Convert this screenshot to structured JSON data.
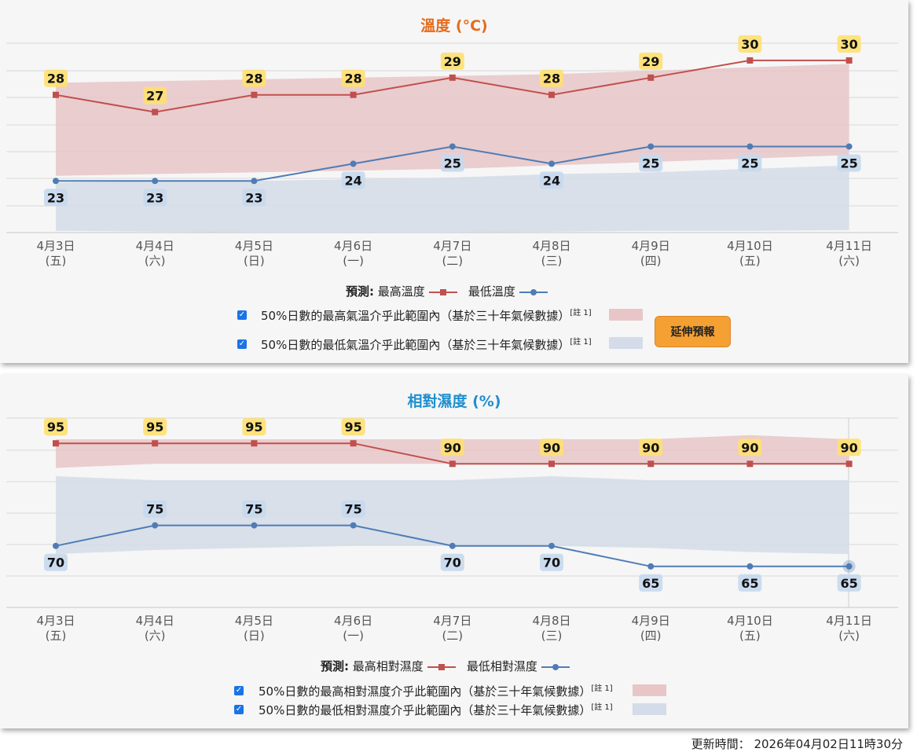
{
  "chart_data": [
    {
      "type": "line",
      "title": "溫度 (°C)",
      "categories": [
        "4月3日",
        "4月4日",
        "4月5日",
        "4月6日",
        "4月7日",
        "4月8日",
        "4月9日",
        "4月10日",
        "4月11日"
      ],
      "weekdays": [
        "(五)",
        "(六)",
        "(日)",
        "(一)",
        "(二)",
        "(三)",
        "(四)",
        "(五)",
        "(六)"
      ],
      "series": [
        {
          "name": "最高溫度",
          "values": [
            28,
            27,
            28,
            28,
            29,
            28,
            29,
            30,
            30
          ],
          "color": "#c0504d"
        },
        {
          "name": "最低溫度",
          "values": [
            23,
            23,
            23,
            24,
            25,
            24,
            25,
            25,
            25
          ],
          "color": "#4f7cb6"
        }
      ],
      "bands": [
        {
          "name": "50%日數的最高氣溫介乎此範圍內（基於三十年氣候數據）",
          "low": [
            23.3,
            23.4,
            23.5,
            23.6,
            23.7,
            23.9,
            24.1,
            24.3,
            24.5
          ],
          "high": [
            28.7,
            28.8,
            28.9,
            29.0,
            29.1,
            29.2,
            29.4,
            29.6,
            29.8
          ],
          "color": "#e8c6c8"
        },
        {
          "name": "50%日數的最低氣溫介乎此範圍內（基於三十年氣候數據）",
          "low": [
            20.1,
            20.05,
            20.0,
            20.0,
            20.0,
            20.05,
            20.1,
            20.1,
            20.15
          ],
          "high": [
            22.9,
            23.0,
            23.0,
            23.1,
            23.2,
            23.4,
            23.5,
            23.7,
            23.9
          ],
          "color": "#d3dce8"
        }
      ],
      "ylim": [
        20,
        31
      ]
    },
    {
      "type": "line",
      "title": "相對濕度 (%)",
      "categories": [
        "4月3日",
        "4月4日",
        "4月5日",
        "4月6日",
        "4月7日",
        "4月8日",
        "4月9日",
        "4月10日",
        "4月11日"
      ],
      "weekdays": [
        "(五)",
        "(六)",
        "(日)",
        "(一)",
        "(二)",
        "(三)",
        "(四)",
        "(五)",
        "(六)"
      ],
      "series": [
        {
          "name": "最高相對濕度",
          "values": [
            95,
            95,
            95,
            95,
            90,
            90,
            90,
            90,
            90
          ],
          "color": "#c0504d"
        },
        {
          "name": "最低相對濕度",
          "values": [
            70,
            75,
            75,
            75,
            70,
            70,
            65,
            65,
            65
          ],
          "color": "#4f7cb6"
        }
      ],
      "bands": [
        {
          "name": "50%日數的最高相對濕度介乎此範圍內（基於三十年氣候數據）",
          "low": [
            89,
            90,
            90,
            90,
            90,
            90,
            90,
            90,
            90
          ],
          "high": [
            96,
            96,
            96,
            96,
            96,
            96,
            96,
            97,
            96
          ],
          "color": "#e8c6c8"
        },
        {
          "name": "50%日數的最低相對濕度介乎此範圍內（基於三十年氣候數據）",
          "low": [
            68,
            69,
            69.5,
            70,
            70,
            70,
            69.5,
            68.5,
            68
          ],
          "high": [
            87,
            86,
            86,
            86,
            86,
            87,
            86,
            86,
            86
          ],
          "color": "#d3dce8"
        }
      ],
      "ylim": [
        55,
        105
      ]
    }
  ],
  "legend1": {
    "prefix": "預測:",
    "max": "最高溫度",
    "min": "最低溫度"
  },
  "legend2": {
    "prefix": "預測:",
    "max": "最高相對濕度",
    "min": "最低相對濕度"
  },
  "checkboxes1": [
    {
      "label": "50%日數的最高氣溫介乎此範圍內（基於三十年氣候數據）",
      "note": "[註 1]",
      "checked": true
    },
    {
      "label": "50%日數的最低氣溫介乎此範圍內（基於三十年氣候數據）",
      "note": "[註 1]",
      "checked": true
    }
  ],
  "checkboxes2": [
    {
      "label": "50%日數的最高相對濕度介乎此範圍內（基於三十年氣候數據）",
      "note": "[註 1]",
      "checked": true
    },
    {
      "label": "50%日數的最低相對濕度介乎此範圍內（基於三十年氣候數據）",
      "note": "[註 1]",
      "checked": true
    }
  ],
  "extend_button": "延伸預報",
  "footer": {
    "label": "更新時間：",
    "value": "2026年04月02日11時30分"
  }
}
